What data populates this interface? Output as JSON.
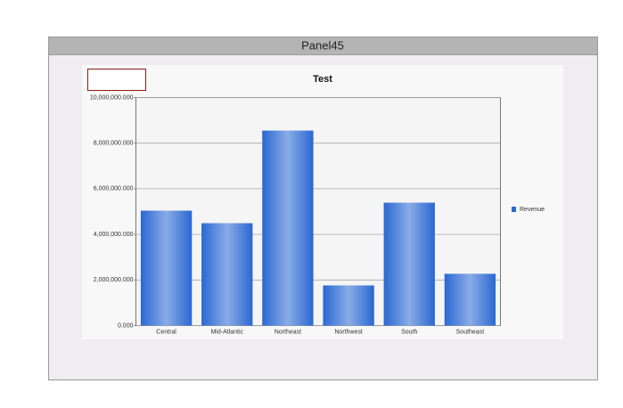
{
  "panel": {
    "title": "Panel45"
  },
  "chart_data": {
    "type": "bar",
    "title": "Test",
    "categories": [
      "Central",
      "Mid-Atlantic",
      "Northeast",
      "Northwest",
      "South",
      "Southeast"
    ],
    "series": [
      {
        "name": "Revenue",
        "color": "#2a68d2",
        "values": [
          5040000,
          4490000,
          8550000,
          1760000,
          5390000,
          2270000
        ]
      }
    ],
    "ylim": [
      0,
      10000000
    ],
    "yticks": [
      {
        "value": 0,
        "label": "0.000"
      },
      {
        "value": 2000000,
        "label": "2,000,000.000"
      },
      {
        "value": 4000000,
        "label": "4,000,000.000"
      },
      {
        "value": 6000000,
        "label": "6,000,000.000"
      },
      {
        "value": 8000000,
        "label": "8,000,000.000"
      },
      {
        "value": 10000000,
        "label": "10,000,000.000"
      }
    ],
    "grid": true,
    "legend": "right"
  }
}
